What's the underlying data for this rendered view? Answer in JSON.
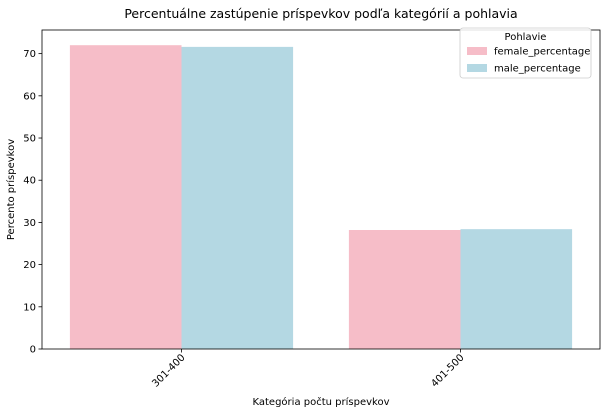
{
  "chart_data": {
    "type": "bar",
    "title": "Percentuálne zastúpenie príspevkov podľa kategórií a pohlavia",
    "xlabel": "Kategória počtu príspevkov",
    "ylabel": "Percento príspevkov",
    "categories": [
      "301-400",
      "401-500"
    ],
    "series": [
      {
        "name": "female_percentage",
        "values": [
          72.0,
          28.2
        ],
        "color": "#f6bdc8"
      },
      {
        "name": "male_percentage",
        "values": [
          71.6,
          28.4
        ],
        "color": "#b4d8e3"
      }
    ],
    "ylim": [
      0,
      75.6
    ],
    "yticks": [
      0,
      10,
      20,
      30,
      40,
      50,
      60,
      70
    ],
    "legend": {
      "title": "Pohlavie",
      "position": "top-right"
    },
    "grid": false
  }
}
